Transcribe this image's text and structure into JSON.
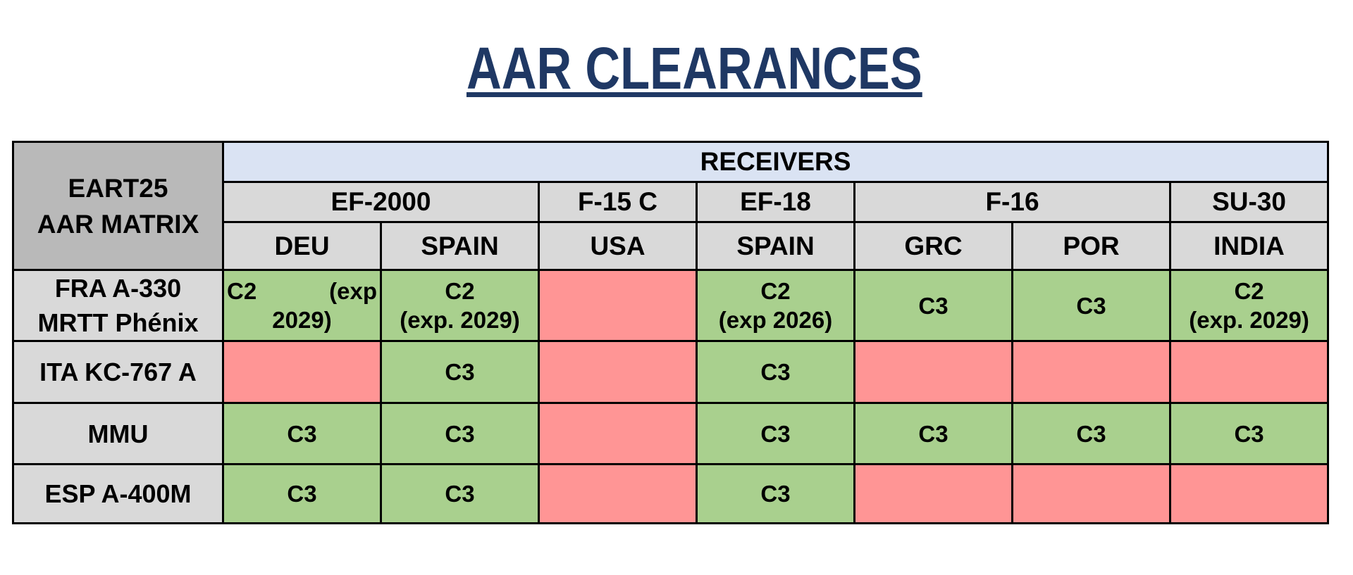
{
  "title": "AAR CLEARANCES",
  "colors": {
    "title": "#1f3864",
    "green": "#a9d08e",
    "red": "#ff9595",
    "blue": "#dae3f3",
    "gray": "#d9d9d9",
    "corner_gray": "#b9b9b9"
  },
  "matrix": {
    "corner_line1": "EART25",
    "corner_line2": "AAR MATRIX",
    "receivers_label": "RECEIVERS",
    "groups": [
      {
        "label": "EF-2000"
      },
      {
        "label": "F-15 C"
      },
      {
        "label": "EF-18"
      },
      {
        "label": "F-16"
      },
      {
        "label": "SU-30"
      }
    ],
    "countries": [
      "DEU",
      "SPAIN",
      "USA",
      "SPAIN",
      "GRC",
      "POR",
      "INDIA"
    ],
    "rows": [
      {
        "tanker_line1": "FRA A-330",
        "tanker_line2": "MRTT Phénix",
        "cells": [
          {
            "status": "cleared",
            "line1_left": "C2",
            "line1_right": "(exp",
            "line2": "2029)"
          },
          {
            "status": "cleared",
            "line1": "C2",
            "line2": "(exp. 2029)"
          },
          {
            "status": "not-cleared",
            "line1": "",
            "line2": ""
          },
          {
            "status": "cleared",
            "line1": "C2",
            "line2": "(exp 2026)"
          },
          {
            "status": "cleared",
            "line1": "C3",
            "line2": ""
          },
          {
            "status": "cleared",
            "line1": "C3",
            "line2": ""
          },
          {
            "status": "cleared",
            "line1": "C2",
            "line2": "(exp. 2029)"
          }
        ]
      },
      {
        "tanker_line1": "ITA KC-767 A",
        "tanker_line2": "",
        "cells": [
          {
            "status": "not-cleared",
            "line1": "",
            "line2": ""
          },
          {
            "status": "cleared",
            "line1": "C3",
            "line2": ""
          },
          {
            "status": "not-cleared",
            "line1": "",
            "line2": ""
          },
          {
            "status": "cleared",
            "line1": "C3",
            "line2": ""
          },
          {
            "status": "not-cleared",
            "line1": "",
            "line2": ""
          },
          {
            "status": "not-cleared",
            "line1": "",
            "line2": ""
          },
          {
            "status": "not-cleared",
            "line1": "",
            "line2": ""
          }
        ]
      },
      {
        "tanker_line1": "MMU",
        "tanker_line2": "",
        "cells": [
          {
            "status": "cleared",
            "line1": "C3",
            "line2": ""
          },
          {
            "status": "cleared",
            "line1": "C3",
            "line2": ""
          },
          {
            "status": "not-cleared",
            "line1": "",
            "line2": ""
          },
          {
            "status": "cleared",
            "line1": "C3",
            "line2": ""
          },
          {
            "status": "cleared",
            "line1": "C3",
            "line2": ""
          },
          {
            "status": "cleared",
            "line1": "C3",
            "line2": ""
          },
          {
            "status": "cleared",
            "line1": "C3",
            "line2": ""
          }
        ]
      },
      {
        "tanker_line1": "ESP A-400M",
        "tanker_line2": "",
        "cells": [
          {
            "status": "cleared",
            "line1": "C3",
            "line2": ""
          },
          {
            "status": "cleared",
            "line1": "C3",
            "line2": ""
          },
          {
            "status": "not-cleared",
            "line1": "",
            "line2": ""
          },
          {
            "status": "cleared",
            "line1": "C3",
            "line2": ""
          },
          {
            "status": "not-cleared",
            "line1": "",
            "line2": ""
          },
          {
            "status": "not-cleared",
            "line1": "",
            "line2": ""
          },
          {
            "status": "not-cleared",
            "line1": "",
            "line2": ""
          }
        ]
      }
    ]
  }
}
